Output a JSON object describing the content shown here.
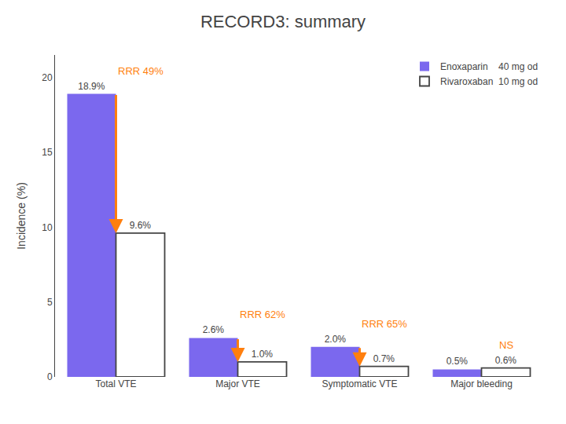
{
  "chart_data": {
    "type": "bar",
    "title": "RECORD3: summary",
    "ylabel": "Incidence (%)",
    "categories": [
      "Total VTE",
      "Major VTE",
      "Symptomatic VTE",
      "Major bleeding"
    ],
    "series": [
      {
        "name": "Enoxaparin    40 mg od",
        "color": "#7b68ee",
        "values": [
          18.9,
          2.6,
          2.0,
          0.5
        ],
        "value_labels": [
          "18.9%",
          "2.6%",
          "2.0%",
          "0.5%"
        ]
      },
      {
        "name": "Rivaroxaban  10 mg od",
        "color": "#444444",
        "marker": "outline",
        "values": [
          9.6,
          1.0,
          0.7,
          0.6
        ],
        "value_labels": [
          "9.6%",
          "1.0%",
          "0.7%",
          "0.6%"
        ]
      }
    ],
    "ylim": [
      0,
      21.5
    ],
    "yticks": [
      0,
      5,
      10,
      15,
      20
    ],
    "grid": false,
    "legend": "upper right",
    "data_labels": true,
    "annotations": [
      {
        "category": "Total VTE",
        "text": "RRR 49%",
        "color": "#ff7f0e",
        "arrow": true
      },
      {
        "category": "Major VTE",
        "text": "RRR 62%",
        "color": "#ff7f0e",
        "arrow": true
      },
      {
        "category": "Symptomatic VTE",
        "text": "RRR 65%",
        "color": "#ff7f0e",
        "arrow": true
      },
      {
        "category": "Major bleeding",
        "text": "NS",
        "color": "#ff7f0e",
        "arrow": false
      }
    ]
  }
}
